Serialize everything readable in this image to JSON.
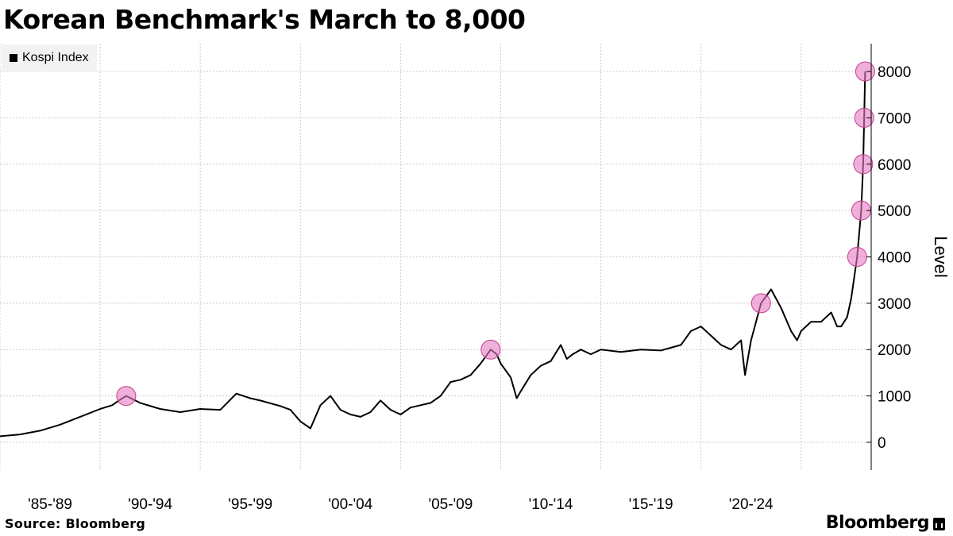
{
  "header": {
    "title": "Korean Benchmark's March to 8,000"
  },
  "footer": {
    "source": "Source: Bloomberg",
    "brand": "Bloomberg"
  },
  "colors": {
    "line": "#000000",
    "highlight": "#e879c4",
    "grid": "#cccccc",
    "legend_bg": "#f2f2f2"
  },
  "chart_data": {
    "type": "line",
    "title": "Korean Benchmark's March to 8,000",
    "ylabel": "Level",
    "xlabel": "",
    "ylim": [
      -600,
      8600
    ],
    "xlim": [
      1983.0,
      2026.5
    ],
    "y_ticks": [
      0,
      1000,
      2000,
      3000,
      4000,
      5000,
      6000,
      7000,
      8000
    ],
    "y_tick_labels": [
      "0",
      "1000",
      "2000",
      "3000",
      "4000",
      "5000",
      "6000",
      "7000",
      "8000"
    ],
    "x_ticks": [
      1983.0,
      1988.0,
      1993.0,
      1998.0,
      2003.0,
      2008.0,
      2013.0,
      2018.0,
      2023.0
    ],
    "x_categories": [
      "'85-'89",
      "'90-'94",
      "'95-'99",
      "'00-'04",
      "'05-'09",
      "'10-'14",
      "'15-'19",
      "'20-'24"
    ],
    "grid": true,
    "legend_position": "top-left",
    "series": [
      {
        "name": "Kospi Index",
        "x": [
          1983.0,
          1984.0,
          1985.0,
          1986.0,
          1987.0,
          1988.0,
          1988.6,
          1989.0,
          1989.3,
          1990.0,
          1991.0,
          1992.0,
          1993.0,
          1994.0,
          1994.8,
          1995.5,
          1996.0,
          1997.0,
          1997.5,
          1998.0,
          1998.5,
          1999.0,
          1999.5,
          2000.0,
          2000.5,
          2001.0,
          2001.5,
          2002.0,
          2002.5,
          2003.0,
          2003.5,
          2004.0,
          2004.5,
          2005.0,
          2005.5,
          2006.0,
          2006.5,
          2007.0,
          2007.5,
          2007.8,
          2008.0,
          2008.5,
          2008.8,
          2009.0,
          2009.5,
          2010.0,
          2010.5,
          2011.0,
          2011.3,
          2011.6,
          2012.0,
          2012.5,
          2013.0,
          2014.0,
          2015.0,
          2016.0,
          2017.0,
          2017.5,
          2018.0,
          2018.5,
          2019.0,
          2019.5,
          2020.0,
          2020.2,
          2020.5,
          2021.0,
          2021.5,
          2022.0,
          2022.5,
          2022.8,
          2023.0,
          2023.5,
          2024.0,
          2024.5,
          2024.8,
          2025.0,
          2025.3,
          2025.5,
          2025.8,
          2026.0,
          2026.1,
          2026.2
        ],
        "values": [
          130,
          170,
          250,
          380,
          550,
          720,
          800,
          920,
          1000,
          850,
          720,
          650,
          720,
          700,
          1050,
          950,
          900,
          780,
          700,
          450,
          300,
          800,
          1000,
          700,
          600,
          550,
          650,
          900,
          700,
          600,
          750,
          800,
          850,
          1000,
          1300,
          1350,
          1450,
          1700,
          2000,
          1900,
          1700,
          1400,
          950,
          1100,
          1450,
          1650,
          1750,
          2100,
          1800,
          1900,
          2000,
          1900,
          2000,
          1950,
          2000,
          1980,
          2100,
          2400,
          2500,
          2300,
          2100,
          2000,
          2200,
          1450,
          2200,
          3000,
          3300,
          2900,
          2400,
          2200,
          2400,
          2600,
          2600,
          2800,
          2500,
          2500,
          2700,
          3100,
          4000,
          5000,
          6000,
          8000
        ]
      }
    ],
    "milestones": [
      {
        "x": 1989.3,
        "y": 1000
      },
      {
        "x": 2007.5,
        "y": 2000
      },
      {
        "x": 2021.0,
        "y": 3000
      },
      {
        "x": 2025.8,
        "y": 4000
      },
      {
        "x": 2026.0,
        "y": 5000
      },
      {
        "x": 2026.1,
        "y": 6000
      },
      {
        "x": 2026.15,
        "y": 7000
      },
      {
        "x": 2026.2,
        "y": 8000
      }
    ]
  }
}
